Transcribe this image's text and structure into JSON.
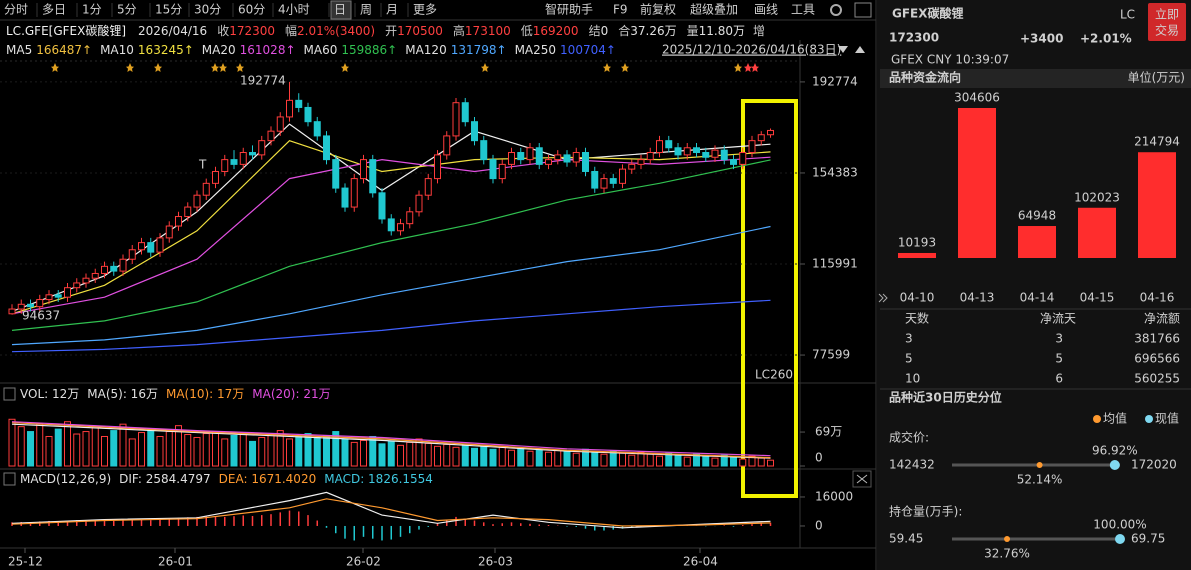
{
  "toolbar": {
    "left": [
      "分时",
      "多日",
      "1分",
      "5分",
      "15分",
      "30分",
      "60分",
      "4小时",
      "日",
      "周",
      "月",
      "更多"
    ],
    "active_index": 8,
    "right": [
      "智研助手",
      "F9",
      "前复权",
      "超级叠加",
      "画线",
      "工具"
    ]
  },
  "info": {
    "symbol": "LC.GFE[GFEX碳酸锂]",
    "date": "2026/04/16",
    "fields": [
      {
        "label": "收",
        "value": "172300",
        "color": "#ff4040"
      },
      {
        "label": "幅",
        "value": "2.01%(3400)",
        "color": "#ff4040"
      },
      {
        "label": "开",
        "value": "170500",
        "color": "#ff4040"
      },
      {
        "label": "高",
        "value": "173100",
        "color": "#ff4040"
      },
      {
        "label": "低",
        "value": "169200",
        "color": "#ff4040"
      },
      {
        "label": "结",
        "value": "0",
        "color": "#e0e0e0"
      },
      {
        "label": "合",
        "value": "37.26万",
        "color": "#e0e0e0"
      },
      {
        "label": "量",
        "value": "11.80万",
        "color": "#e0e0e0"
      }
    ],
    "extra": "增"
  },
  "ma_legend": [
    {
      "name": "MA5",
      "value": "166487↑",
      "color": "#f0c040"
    },
    {
      "name": "MA10",
      "value": "163245↑",
      "color": "#f0e040"
    },
    {
      "name": "MA20",
      "value": "161028↑",
      "color": "#e050e0"
    },
    {
      "name": "MA60",
      "value": "159886↑",
      "color": "#30c050"
    },
    {
      "name": "MA120",
      "value": "131798↑",
      "color": "#50a8ff"
    },
    {
      "name": "MA250",
      "value": "100704↑",
      "color": "#4060ff"
    }
  ],
  "date_range": "2025/12/10-2026/04/16(83日)",
  "main_chart": {
    "ylim": [
      73403,
      201166
    ],
    "yticks": [
      192774,
      154383,
      115991,
      77599
    ],
    "x_labels": [
      "25-12",
      "26-01",
      "26-02",
      "26-03",
      "26-04"
    ],
    "candles": {
      "open": [
        95000,
        97000,
        99000,
        98000,
        101000,
        103000,
        102000,
        106000,
        108000,
        110000,
        112000,
        115000,
        113000,
        118000,
        122000,
        125000,
        121000,
        127000,
        132000,
        136000,
        140000,
        145000,
        150000,
        155000,
        160000,
        158000,
        163000,
        162000,
        168000,
        172000,
        178000,
        185000,
        182000,
        176000,
        170000,
        160000,
        148000,
        140000,
        152000,
        160000,
        146000,
        135000,
        130000,
        133000,
        138000,
        145000,
        152000,
        162000,
        170000,
        184000,
        176000,
        168000,
        160000,
        152000,
        158000,
        163000,
        160000,
        165000,
        158000,
        160000,
        162000,
        159000,
        163000,
        155000,
        148000,
        152000,
        150000,
        156000,
        158000,
        160000,
        163000,
        168000,
        165000,
        162000,
        165000,
        163000,
        161000,
        164000,
        160000,
        158000,
        163000,
        168000,
        170500
      ],
      "high": [
        99000,
        101000,
        101000,
        103000,
        105000,
        105000,
        108000,
        110000,
        112000,
        114000,
        117000,
        117000,
        120000,
        124000,
        127000,
        127000,
        129000,
        134000,
        138000,
        142000,
        147000,
        152000,
        157000,
        162000,
        164000,
        165000,
        166000,
        170000,
        174000,
        180000,
        192774,
        188000,
        184000,
        178000,
        172000,
        162000,
        150000,
        154000,
        162000,
        162000,
        148000,
        137000,
        135000,
        140000,
        147000,
        154000,
        164000,
        172000,
        186000,
        186000,
        178000,
        170000,
        162000,
        160000,
        165000,
        165000,
        167000,
        167000,
        162000,
        164000,
        164000,
        165000,
        165000,
        157000,
        154000,
        154000,
        158000,
        160000,
        162000,
        165000,
        170000,
        170000,
        167000,
        167000,
        167000,
        165000,
        166000,
        166000,
        162000,
        165000,
        170000,
        172000,
        173100
      ],
      "low": [
        94637,
        95000,
        96000,
        96000,
        99000,
        100000,
        100000,
        104000,
        106000,
        108000,
        110000,
        111000,
        111000,
        116000,
        120000,
        119000,
        119000,
        125000,
        130000,
        134000,
        138000,
        143000,
        148000,
        153000,
        156000,
        156000,
        160000,
        160000,
        166000,
        170000,
        176000,
        180000,
        174000,
        168000,
        158000,
        146000,
        138000,
        138000,
        150000,
        144000,
        133000,
        128000,
        128000,
        131000,
        136000,
        143000,
        150000,
        160000,
        168000,
        174000,
        166000,
        158000,
        150000,
        150000,
        156000,
        158000,
        158000,
        156000,
        156000,
        158000,
        157000,
        157000,
        153000,
        146000,
        146000,
        148000,
        148000,
        154000,
        156000,
        158000,
        161000,
        163000,
        160000,
        160000,
        161000,
        159000,
        159000,
        158000,
        156000,
        156000,
        161000,
        166000,
        169200
      ],
      "close": [
        97000,
        99000,
        98000,
        101000,
        103000,
        102000,
        106000,
        108000,
        110000,
        112000,
        115000,
        113000,
        118000,
        122000,
        125000,
        121000,
        127000,
        132000,
        136000,
        140000,
        145000,
        150000,
        155000,
        160000,
        158000,
        163000,
        162000,
        168000,
        172000,
        178000,
        185000,
        182000,
        176000,
        170000,
        160000,
        148000,
        140000,
        152000,
        160000,
        146000,
        135000,
        130000,
        133000,
        138000,
        145000,
        152000,
        162000,
        170000,
        184000,
        176000,
        168000,
        160000,
        152000,
        158000,
        163000,
        160000,
        165000,
        158000,
        160000,
        162000,
        159000,
        163000,
        155000,
        148000,
        152000,
        150000,
        156000,
        158000,
        160000,
        163000,
        168000,
        165000,
        162000,
        165000,
        163000,
        161000,
        164000,
        160000,
        158000,
        163000,
        168000,
        170500,
        172300
      ],
      "up_color": "#ff3c3c",
      "down_color": "#20c8d0"
    },
    "ma": {
      "x": [
        0,
        10,
        20,
        30,
        40,
        50,
        60,
        70,
        82
      ],
      "series": [
        {
          "values": [
            96000,
            111000,
            138000,
            175000,
            147000,
            172000,
            160000,
            163000,
            166487
          ],
          "color": "#f0f0f0"
        },
        {
          "values": [
            95000,
            107000,
            130000,
            168000,
            155000,
            160000,
            161000,
            160000,
            163245
          ],
          "color": "#f0e040"
        },
        {
          "values": [
            95000,
            102000,
            118000,
            152000,
            160000,
            155000,
            160000,
            158000,
            161028
          ],
          "color": "#e050e0"
        },
        {
          "values": [
            88000,
            92000,
            100000,
            115000,
            125000,
            133000,
            143000,
            150000,
            159886
          ],
          "color": "#30c050"
        },
        {
          "values": [
            82000,
            84000,
            88000,
            95000,
            103000,
            110000,
            117000,
            122000,
            131798
          ],
          "color": "#50a8ff"
        },
        {
          "values": [
            79000,
            80000,
            82000,
            85000,
            88000,
            92000,
            95000,
            98000,
            100704
          ],
          "color": "#4060ff"
        }
      ]
    },
    "high_label": "192774",
    "low_label": "94637",
    "signal_label": "T",
    "watermark": "LC260"
  },
  "volume": {
    "legend": [
      {
        "text": "VOL: 12万",
        "color": "#e0e0e0"
      },
      {
        "text": "MA(5): 16万",
        "color": "#e0e0e0"
      },
      {
        "text": "MA(10): 17万",
        "color": "#ff9a30"
      },
      {
        "text": "MA(20): 21万",
        "color": "#e050e0"
      }
    ],
    "ylim": [
      0,
      124
    ],
    "yticks": [
      {
        "value": 69,
        "label": "69万"
      },
      0
    ],
    "values": [
      95,
      80,
      70,
      85,
      60,
      75,
      90,
      65,
      70,
      80,
      60,
      72,
      85,
      55,
      68,
      75,
      60,
      70,
      82,
      64,
      58,
      66,
      70,
      55,
      62,
      68,
      50,
      58,
      64,
      72,
      55,
      60,
      66,
      58,
      62,
      70,
      55,
      48,
      52,
      60,
      45,
      50,
      42,
      48,
      55,
      46,
      40,
      44,
      38,
      42,
      36,
      40,
      34,
      38,
      32,
      36,
      30,
      34,
      28,
      32,
      30,
      26,
      34,
      28,
      24,
      30,
      26,
      22,
      28,
      24,
      20,
      26,
      22,
      18,
      24,
      20,
      16,
      22,
      18,
      14,
      20,
      16,
      11.8
    ],
    "ma": {
      "x": [
        0,
        20,
        40,
        60,
        82
      ],
      "series": [
        {
          "values": [
            85,
            68,
            52,
            30,
            16
          ],
          "color": "#f0f0f0"
        },
        {
          "values": [
            88,
            70,
            55,
            32,
            17
          ],
          "color": "#ff9a30"
        },
        {
          "values": [
            90,
            72,
            58,
            35,
            21
          ],
          "color": "#e050e0"
        }
      ]
    }
  },
  "macd": {
    "legend": [
      {
        "text": "MACD(12,26,9)",
        "color": "#e0e0e0"
      },
      {
        "text": "DIF: 2584.4797",
        "color": "#e0e0e0"
      },
      {
        "text": "DEA: 1671.4020",
        "color": "#ff9a30"
      },
      {
        "text": "MACD: 1826.1554",
        "color": "#40c8e0"
      }
    ],
    "ylim": [
      -10500,
      21500
    ],
    "yticks": [
      16000,
      0
    ],
    "hist": [
      2000,
      2200,
      1800,
      2500,
      2800,
      2600,
      3000,
      3200,
      3000,
      3400,
      3000,
      2800,
      3500,
      3800,
      3600,
      3200,
      3800,
      4200,
      4500,
      4800,
      5000,
      5200,
      5500,
      5000,
      5400,
      5800,
      5500,
      6000,
      6500,
      7500,
      8500,
      8000,
      6000,
      3000,
      -1000,
      -4000,
      -7000,
      -8000,
      -6000,
      -7000,
      -8000,
      -7500,
      -6000,
      -4000,
      -2000,
      -500,
      1500,
      3500,
      5000,
      4000,
      3000,
      2000,
      1000,
      1500,
      2000,
      1500,
      1200,
      800,
      500,
      200,
      -300,
      -500,
      -1500,
      -2500,
      -2500,
      -2000,
      -1500,
      -1000,
      -800,
      -500,
      200,
      400,
      300,
      200,
      100,
      -200,
      -100,
      300,
      -400,
      500,
      1000,
      1500,
      1826.1554
    ],
    "x": [
      0,
      10,
      20,
      30,
      34,
      40,
      46,
      52,
      58,
      66,
      74,
      82
    ],
    "dif": [
      1500,
      3500,
      4500,
      14000,
      18500,
      6000,
      1500,
      6000,
      2000,
      -1000,
      800,
      2584.4797
    ],
    "dea": [
      1000,
      3000,
      4000,
      10000,
      15000,
      10000,
      3000,
      4500,
      3500,
      0,
      500,
      1671.402
    ],
    "dif_color": "#f0f0f0",
    "dea_color": "#ff9a30"
  },
  "side": {
    "name": "GFEX碳酸锂",
    "code": "LC",
    "trade_button": [
      "立即",
      "交易"
    ],
    "price": 172300,
    "change": "+3400",
    "change_pct": "+2.01%",
    "meta": "GFEX  CNY  10:39:07",
    "flow": {
      "title": "品种资金流向",
      "unit": "单位(万元)",
      "categories": [
        "04-10",
        "04-13",
        "04-14",
        "04-15",
        "04-16"
      ],
      "values": [
        10193,
        304606,
        64948,
        102023,
        214794
      ],
      "color": "#ff2d2d"
    },
    "flow_table": {
      "header": [
        "天数",
        "净流天",
        "净流额"
      ],
      "rows": [
        [
          3,
          3,
          381766
        ],
        [
          5,
          5,
          696566
        ],
        [
          10,
          6,
          560255
        ]
      ]
    },
    "percentile": {
      "title": "品种近30日历史分位",
      "legend": [
        "均值",
        "现值"
      ],
      "items": [
        {
          "label": "成交价:",
          "min": 142432,
          "max": 172020,
          "current": {
            "value": 96.92,
            "label": "96.92%"
          },
          "mean": {
            "value": 52.14,
            "label": "52.14%"
          }
        },
        {
          "label": "持仓量(万手):",
          "min": 59.45,
          "max": 69.75,
          "current": {
            "value": 100.0,
            "label": "100.00%"
          },
          "mean": {
            "value": 32.76,
            "label": "32.76%"
          }
        }
      ]
    }
  }
}
